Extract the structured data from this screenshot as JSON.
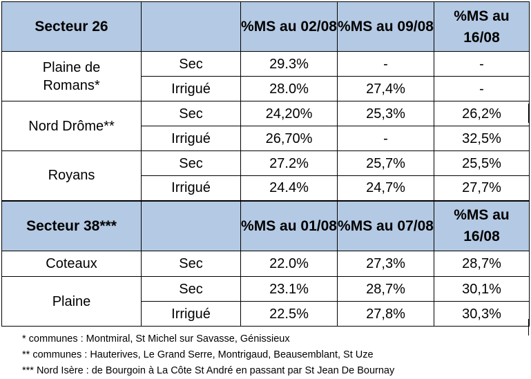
{
  "table": {
    "header1": {
      "sector": "Secteur 26",
      "dates": [
        "%MS au 02/08",
        "%MS au 09/08",
        "%MS au 16/08"
      ]
    },
    "group1": [
      {
        "zone": "Plaine de Romans*",
        "rows": [
          {
            "type": "Sec",
            "values": [
              "29.3%",
              "-",
              "-"
            ]
          },
          {
            "type": "Irrigué",
            "values": [
              "28.0%",
              "27,4%",
              "-"
            ]
          }
        ]
      },
      {
        "zone": "Nord Drôme**",
        "rows": [
          {
            "type": "Sec",
            "values": [
              "24,20%",
              "25,3%",
              "26,2%"
            ]
          },
          {
            "type": "Irrigué",
            "values": [
              "26,70%",
              "-",
              "32,5%"
            ]
          }
        ]
      },
      {
        "zone": "Royans",
        "rows": [
          {
            "type": "Sec",
            "values": [
              "27.2%",
              "25,7%",
              "25,5%"
            ]
          },
          {
            "type": "Irrigué",
            "values": [
              "24.4%",
              "24,7%",
              "27,7%"
            ]
          }
        ]
      }
    ],
    "header2": {
      "sector": "Secteur 38***",
      "dates": [
        "%MS au 01/08",
        "%MS au 07/08",
        "%MS au 16/08"
      ]
    },
    "group2": [
      {
        "zone": "Coteaux",
        "rows": [
          {
            "type": "Sec",
            "values": [
              "22.0%",
              "27,3%",
              "28,7%"
            ]
          }
        ]
      },
      {
        "zone": "Plaine",
        "rows": [
          {
            "type": "Sec",
            "values": [
              "23.1%",
              "28,7%",
              "30,1%"
            ]
          },
          {
            "type": "Irrigué",
            "values": [
              "22.5%",
              "27,8%",
              "30,3%"
            ]
          }
        ]
      }
    ]
  },
  "footnotes": [
    "* communes : Montmiral, St Michel sur Savasse, Génissieux",
    "** communes : Hauterives, Le Grand Serre, Montrigaud, Beausemblant, St Uze",
    "*** Nord Isère : de Bourgoin à La Côte St André en passant par St Jean De Bournay"
  ]
}
